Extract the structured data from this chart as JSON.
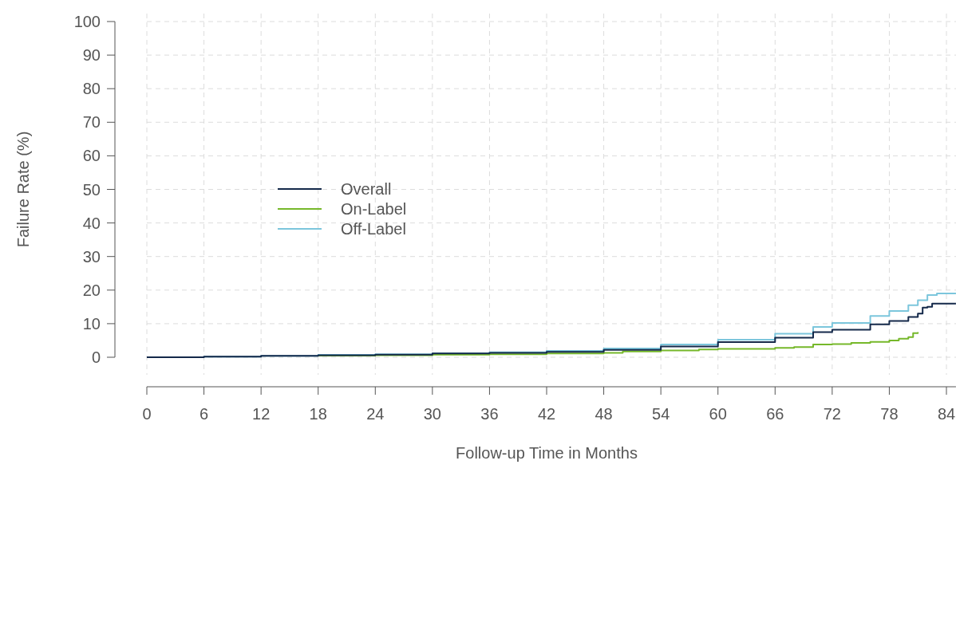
{
  "chart_data": {
    "type": "step",
    "xlabel": "Follow-up Time in Months",
    "ylabel": "Failure Rate (%)",
    "xlim": [
      0,
      85
    ],
    "ylim": [
      0,
      100
    ],
    "xticks": [
      0,
      6,
      12,
      18,
      24,
      30,
      36,
      42,
      48,
      54,
      60,
      66,
      72,
      78,
      84
    ],
    "yticks": [
      0,
      10,
      20,
      30,
      40,
      50,
      60,
      70,
      80,
      90,
      100
    ],
    "grid": true,
    "legend": "left",
    "line_style": "solid",
    "marker": "none",
    "series": [
      {
        "name": "Overall",
        "color": "#14294a",
        "x": [
          0,
          6,
          12,
          18,
          24,
          30,
          36,
          42,
          48,
          54,
          60,
          66,
          70,
          72,
          76,
          78,
          80,
          81,
          81.5,
          82,
          82.5,
          85
        ],
        "values": [
          0,
          0.2,
          0.4,
          0.6,
          0.8,
          1.1,
          1.3,
          1.6,
          2.2,
          3.2,
          4.5,
          5.8,
          7.5,
          8.2,
          9.8,
          10.8,
          12,
          13,
          14.8,
          15,
          16,
          16
        ]
      },
      {
        "name": "On-Label",
        "color": "#76b82a",
        "x": [
          18,
          24,
          30,
          36,
          42,
          48,
          50,
          54,
          58,
          60,
          66,
          68,
          70,
          72,
          74,
          76,
          78,
          79,
          80,
          80.5,
          81
        ],
        "values": [
          0.5,
          0.6,
          0.8,
          0.9,
          1.1,
          1.3,
          1.7,
          2,
          2.3,
          2.5,
          2.8,
          3,
          3.8,
          3.9,
          4.3,
          4.6,
          5,
          5.5,
          6,
          7.2,
          7.5
        ]
      },
      {
        "name": "Off-Label",
        "color": "#7cc6dc",
        "x": [
          0,
          6,
          12,
          18,
          24,
          30,
          36,
          42,
          48,
          54,
          60,
          66,
          70,
          72,
          76,
          78,
          80,
          81,
          82,
          83,
          85
        ],
        "values": [
          0,
          0.2,
          0.4,
          0.7,
          0.9,
          1.2,
          1.5,
          1.9,
          2.6,
          3.8,
          5.2,
          7,
          9,
          10.2,
          12.3,
          13.8,
          15.5,
          17,
          18.5,
          19,
          19
        ]
      }
    ]
  }
}
